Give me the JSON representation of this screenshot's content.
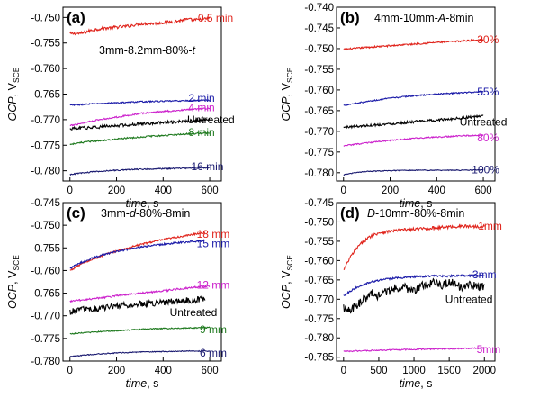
{
  "chart_data": [
    {
      "id": "a",
      "type": "line",
      "panel_label": "(a)",
      "title_parts": [
        {
          "t": "3mm-8.2mm-80%-"
        },
        {
          "t": "t",
          "i": true
        }
      ],
      "xlabel": "time",
      "xunit": ", s",
      "ylabel": "OCP",
      "yunit": ", V",
      "ysub": "SCE",
      "xlim": [
        -30,
        650
      ],
      "ylim": [
        -0.782,
        -0.748
      ],
      "xticks": [
        0,
        200,
        400,
        600
      ],
      "yticks": [
        -0.78,
        -0.775,
        -0.77,
        -0.765,
        -0.76,
        -0.755,
        -0.75
      ],
      "ytick_labels": [
        "-0.780",
        "-0.775",
        "-0.770",
        "-0.765",
        "-0.760",
        "-0.755",
        "-0.750"
      ],
      "series": [
        {
          "name": "0.5 min",
          "color": "#e0241c",
          "x": [
            0,
            50,
            100,
            150,
            200,
            250,
            300,
            350,
            400,
            450,
            500,
            550,
            600
          ],
          "y": [
            -0.7532,
            -0.7531,
            -0.7524,
            -0.7521,
            -0.7519,
            -0.7517,
            -0.7512,
            -0.7512,
            -0.751,
            -0.7508,
            -0.7504,
            -0.7505,
            -0.7502
          ],
          "noise": 0.0003
        },
        {
          "name": "2 min",
          "color": "#1a1aa8",
          "x": [
            0,
            100,
            200,
            300,
            400,
            500,
            600
          ],
          "y": [
            -0.7672,
            -0.7669,
            -0.7667,
            -0.7665,
            -0.7664,
            -0.7663,
            -0.7662
          ],
          "noise": 0.00012
        },
        {
          "name": "4 min",
          "color": "#cc22cc",
          "x": [
            0,
            100,
            200,
            300,
            400,
            500,
            600
          ],
          "y": [
            -0.7712,
            -0.7702,
            -0.7695,
            -0.7688,
            -0.7684,
            -0.7681,
            -0.7678
          ],
          "noise": 0.00015
        },
        {
          "name": "Untreated",
          "color": "#000000",
          "x": [
            0,
            100,
            200,
            300,
            400,
            500,
            600
          ],
          "y": [
            -0.7718,
            -0.7715,
            -0.7712,
            -0.7708,
            -0.7706,
            -0.7703,
            -0.77
          ],
          "noise": 0.0003
        },
        {
          "name": "8 min",
          "color": "#1f7a1f",
          "x": [
            0,
            100,
            200,
            300,
            400,
            500,
            600
          ],
          "y": [
            -0.7748,
            -0.7742,
            -0.7738,
            -0.7734,
            -0.7731,
            -0.7728,
            -0.7726
          ],
          "noise": 0.00015
        },
        {
          "name": "16 min",
          "color": "#1a1a70",
          "x": [
            0,
            100,
            200,
            300,
            400,
            500,
            600
          ],
          "y": [
            -0.7807,
            -0.7802,
            -0.7799,
            -0.7797,
            -0.7796,
            -0.7795,
            -0.7794
          ],
          "noise": 0.00012
        }
      ],
      "labels": [
        {
          "text": "0.5 min",
          "x": 625,
          "y": -0.7501,
          "color": "#e0241c"
        },
        {
          "text": "2 min",
          "x": 565,
          "y": -0.7658,
          "color": "#1a1aa8"
        },
        {
          "text": "4 min",
          "x": 565,
          "y": -0.7676,
          "color": "#cc22cc"
        },
        {
          "text": "Untreated",
          "x": 605,
          "y": -0.77,
          "color": "#000000",
          "small": true
        },
        {
          "text": "8 min",
          "x": 565,
          "y": -0.7725,
          "color": "#1f7a1f"
        },
        {
          "text": "16 min",
          "x": 590,
          "y": -0.7792,
          "color": "#1a1a70"
        }
      ]
    },
    {
      "id": "b",
      "type": "line",
      "panel_label": "(b)",
      "title_parts": [
        {
          "t": "4mm-10mm-"
        },
        {
          "t": "A",
          "i": true
        },
        {
          "t": "-8min"
        }
      ],
      "xlabel": "time",
      "xunit": ", s",
      "ylabel": "OCP",
      "yunit": ", V",
      "ysub": "SCE",
      "xlim": [
        -30,
        650
      ],
      "ylim": [
        -0.782,
        -0.74
      ],
      "xticks": [
        0,
        200,
        400,
        600
      ],
      "yticks": [
        -0.78,
        -0.775,
        -0.77,
        -0.765,
        -0.76,
        -0.755,
        -0.75,
        -0.745,
        -0.74
      ],
      "ytick_labels": [
        "-0.780",
        "-0.775",
        "-0.770",
        "-0.765",
        "-0.760",
        "-0.755",
        "-0.750",
        "-0.745",
        "-0.740"
      ],
      "series": [
        {
          "name": "30%",
          "color": "#e0241c",
          "x": [
            0,
            100,
            200,
            300,
            400,
            500,
            600
          ],
          "y": [
            -0.7502,
            -0.7497,
            -0.7493,
            -0.7489,
            -0.7485,
            -0.7482,
            -0.7478
          ],
          "noise": 0.0002
        },
        {
          "name": "55%",
          "color": "#1a1aa8",
          "x": [
            0,
            100,
            200,
            300,
            400,
            500,
            600
          ],
          "y": [
            -0.7637,
            -0.7628,
            -0.762,
            -0.7614,
            -0.761,
            -0.7607,
            -0.7604
          ],
          "noise": 0.00015
        },
        {
          "name": "Untreated",
          "color": "#000000",
          "x": [
            0,
            100,
            200,
            300,
            400,
            500,
            600
          ],
          "y": [
            -0.769,
            -0.7686,
            -0.7682,
            -0.7677,
            -0.7673,
            -0.7668,
            -0.7663
          ],
          "noise": 0.0003
        },
        {
          "name": "80%",
          "color": "#cc22cc",
          "x": [
            0,
            100,
            200,
            300,
            400,
            500,
            600
          ],
          "y": [
            -0.7735,
            -0.7728,
            -0.7722,
            -0.7717,
            -0.7714,
            -0.7711,
            -0.7709
          ],
          "noise": 0.00015
        },
        {
          "name": "100%",
          "color": "#1a1a70",
          "x": [
            0,
            50,
            100,
            200,
            300,
            400,
            500,
            600
          ],
          "y": [
            -0.7805,
            -0.78,
            -0.7797,
            -0.7795,
            -0.7794,
            -0.7794,
            -0.7794,
            -0.7793
          ],
          "noise": 0.0001
        }
      ],
      "labels": [
        {
          "text": "30%",
          "x": 620,
          "y": -0.7478,
          "color": "#e0241c"
        },
        {
          "text": "55%",
          "x": 620,
          "y": -0.7605,
          "color": "#1a1aa8"
        },
        {
          "text": "Untreated",
          "x": 600,
          "y": -0.7677,
          "color": "#000000"
        },
        {
          "text": "80%",
          "x": 620,
          "y": -0.7715,
          "color": "#cc22cc"
        },
        {
          "text": "100%",
          "x": 610,
          "y": -0.7793,
          "color": "#1a1a70"
        }
      ]
    },
    {
      "id": "c",
      "type": "line",
      "panel_label": "(c)",
      "title_parts": [
        {
          "t": "3mm-"
        },
        {
          "t": "d",
          "i": true
        },
        {
          "t": "-80%-8min"
        }
      ],
      "xlabel": "time",
      "xunit": ", s",
      "ylabel": "OCP",
      "yunit": ", V",
      "ysub": "SCE",
      "xlim": [
        -30,
        650
      ],
      "ylim": [
        -0.78,
        -0.745
      ],
      "xticks": [
        0,
        200,
        400,
        600
      ],
      "yticks": [
        -0.78,
        -0.775,
        -0.77,
        -0.765,
        -0.76,
        -0.755,
        -0.75,
        -0.745
      ],
      "ytick_labels": [
        "-0.780",
        "-0.775",
        "-0.770",
        "-0.765",
        "-0.760",
        "-0.755",
        "-0.750",
        "-0.745"
      ],
      "series": [
        {
          "name": "18 mm",
          "color": "#e0241c",
          "x": [
            0,
            50,
            100,
            150,
            200,
            250,
            300,
            350,
            400,
            450,
            500,
            550,
            580
          ],
          "y": [
            -0.76,
            -0.7585,
            -0.7575,
            -0.7565,
            -0.7557,
            -0.755,
            -0.7543,
            -0.7537,
            -0.7532,
            -0.7527,
            -0.7523,
            -0.7518,
            -0.7516
          ],
          "noise": 0.0002
        },
        {
          "name": "15 mm",
          "color": "#1a1aa8",
          "x": [
            0,
            50,
            100,
            150,
            200,
            250,
            300,
            350,
            400,
            450,
            500,
            550,
            580
          ],
          "y": [
            -0.7595,
            -0.7582,
            -0.7572,
            -0.7564,
            -0.7558,
            -0.7553,
            -0.7549,
            -0.7545,
            -0.7542,
            -0.7539,
            -0.7537,
            -0.7535,
            -0.7534
          ],
          "noise": 0.0002
        },
        {
          "name": "12 mm",
          "color": "#cc22cc",
          "x": [
            0,
            100,
            200,
            300,
            400,
            500,
            600
          ],
          "y": [
            -0.7668,
            -0.7662,
            -0.7656,
            -0.765,
            -0.7645,
            -0.7639,
            -0.7634
          ],
          "noise": 0.0002
        },
        {
          "name": "Untreated",
          "color": "#000000",
          "x": [
            0,
            100,
            200,
            300,
            400,
            500,
            580
          ],
          "y": [
            -0.769,
            -0.7684,
            -0.7679,
            -0.7674,
            -0.767,
            -0.7666,
            -0.7664
          ],
          "noise": 0.0007
        },
        {
          "name": "9 mm",
          "color": "#1f7a1f",
          "x": [
            0,
            100,
            200,
            300,
            400,
            500,
            600
          ],
          "y": [
            -0.774,
            -0.7736,
            -0.7733,
            -0.773,
            -0.7728,
            -0.7727,
            -0.7726
          ],
          "noise": 0.00012
        },
        {
          "name": "6 mm",
          "color": "#1a1a70",
          "x": [
            0,
            100,
            200,
            300,
            400,
            500,
            600
          ],
          "y": [
            -0.779,
            -0.7785,
            -0.7782,
            -0.778,
            -0.7779,
            -0.7778,
            -0.7778
          ],
          "noise": 0.0001
        }
      ],
      "labels": [
        {
          "text": "18 mm",
          "x": 615,
          "y": -0.752,
          "color": "#e0241c"
        },
        {
          "text": "15 mm",
          "x": 615,
          "y": -0.754,
          "color": "#1a1aa8"
        },
        {
          "text": "12 mm",
          "x": 615,
          "y": -0.7632,
          "color": "#cc22cc"
        },
        {
          "text": "Untreated",
          "x": 530,
          "y": -0.7693,
          "color": "#000000"
        },
        {
          "text": "9 mm",
          "x": 615,
          "y": -0.773,
          "color": "#1f7a1f"
        },
        {
          "text": "6 mm",
          "x": 615,
          "y": -0.7782,
          "color": "#1a1a70"
        }
      ]
    },
    {
      "id": "d",
      "type": "line",
      "panel_label": "(d)",
      "title_parts": [
        {
          "t": "D",
          "i": true
        },
        {
          "t": "-10mm-80%-8min"
        }
      ],
      "xlabel": "time",
      "xunit": ", s",
      "ylabel": "OCP",
      "yunit": ", V",
      "ysub": "SCE",
      "xlim": [
        -100,
        2150
      ],
      "ylim": [
        -0.786,
        -0.745
      ],
      "xticks": [
        0,
        500,
        1000,
        1500,
        2000
      ],
      "yticks": [
        -0.785,
        -0.78,
        -0.775,
        -0.77,
        -0.765,
        -0.76,
        -0.755,
        -0.75,
        -0.745
      ],
      "ytick_labels": [
        "-0.785",
        "-0.780",
        "-0.775",
        "-0.770",
        "-0.765",
        "-0.760",
        "-0.755",
        "-0.750",
        "-0.745"
      ],
      "series": [
        {
          "name": "1mm",
          "color": "#e0241c",
          "x": [
            0,
            100,
            200,
            300,
            400,
            500,
            700,
            900,
            1100,
            1300,
            1500,
            1700,
            1900,
            2000
          ],
          "y": [
            -0.7625,
            -0.759,
            -0.7565,
            -0.7548,
            -0.7535,
            -0.7528,
            -0.7523,
            -0.752,
            -0.7518,
            -0.7515,
            -0.7513,
            -0.7511,
            -0.7512,
            -0.751
          ],
          "noise": 0.0004
        },
        {
          "name": "3mm",
          "color": "#1a1aa8",
          "x": [
            0,
            100,
            200,
            300,
            400,
            500,
            700,
            900,
            1100,
            1300,
            1500,
            1700,
            1900,
            2000
          ],
          "y": [
            -0.769,
            -0.7678,
            -0.7668,
            -0.766,
            -0.7655,
            -0.7651,
            -0.7646,
            -0.7643,
            -0.7641,
            -0.764,
            -0.764,
            -0.7639,
            -0.7639,
            -0.7638
          ],
          "noise": 0.00025
        },
        {
          "name": "Untreated",
          "color": "#000000",
          "x": [
            0,
            100,
            200,
            300,
            400,
            500,
            600,
            700,
            800,
            900,
            1000,
            1100,
            1200,
            1300,
            1400,
            1500,
            1600,
            1700,
            1800,
            1900,
            2000
          ],
          "y": [
            -0.772,
            -0.773,
            -0.7712,
            -0.77,
            -0.7685,
            -0.769,
            -0.768,
            -0.7675,
            -0.7668,
            -0.7672,
            -0.7678,
            -0.7668,
            -0.766,
            -0.7655,
            -0.7662,
            -0.7658,
            -0.766,
            -0.767,
            -0.7665,
            -0.7668,
            -0.7665
          ],
          "noise": 0.0012
        },
        {
          "name": "5mm",
          "color": "#cc22cc",
          "x": [
            0,
            500,
            1000,
            1500,
            2000
          ],
          "y": [
            -0.7835,
            -0.7832,
            -0.783,
            -0.7828,
            -0.7826
          ],
          "noise": 0.00015
        }
      ],
      "labels": [
        {
          "text": "1mm",
          "x": 2080,
          "y": -0.751,
          "color": "#e0241c"
        },
        {
          "text": "3mm",
          "x": 2000,
          "y": -0.7636,
          "color": "#1a1aa8"
        },
        {
          "text": "Untreated",
          "x": 1780,
          "y": -0.77,
          "color": "#000000"
        },
        {
          "text": "5mm",
          "x": 2060,
          "y": -0.783,
          "color": "#cc22cc"
        }
      ]
    }
  ]
}
